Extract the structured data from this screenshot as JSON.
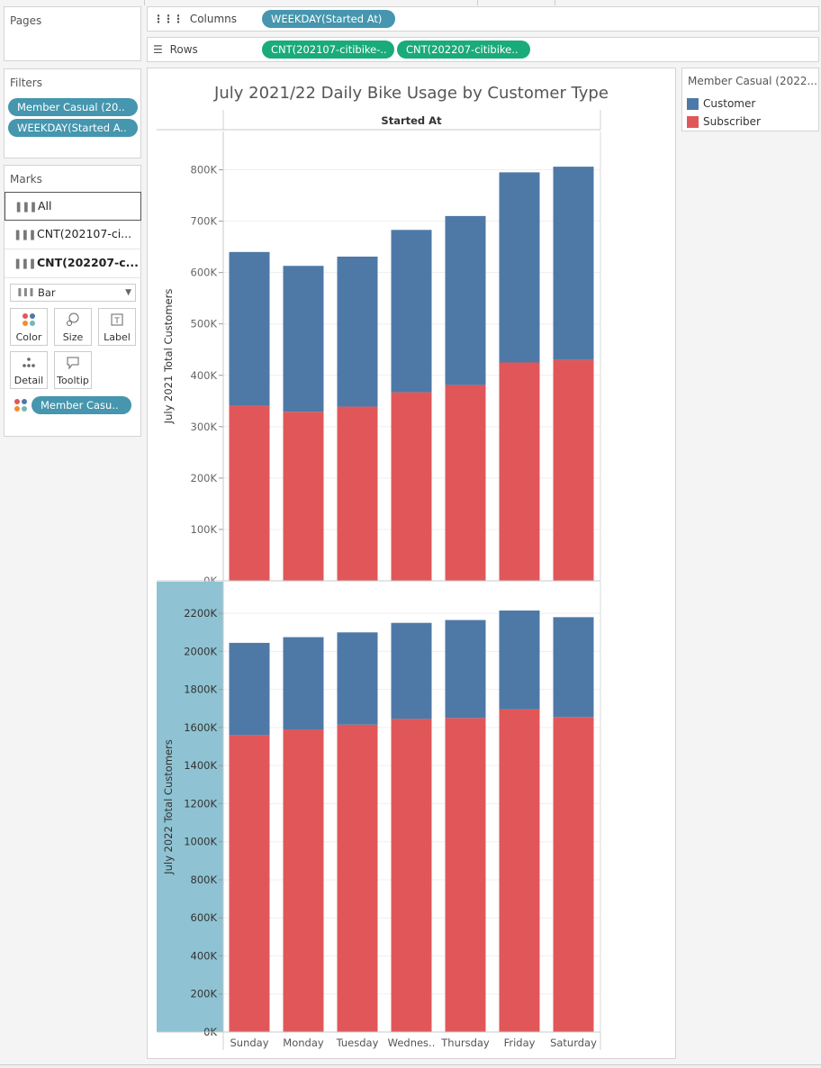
{
  "pages": {
    "title": "Pages"
  },
  "columns_shelf": {
    "label": "Columns",
    "pills": [
      "WEEKDAY(Started At)"
    ]
  },
  "rows_shelf": {
    "label": "Rows",
    "pills": [
      "CNT(202107-citibike-..",
      "CNT(202207-citibike.."
    ]
  },
  "filters": {
    "title": "Filters",
    "pills": [
      "Member Casual (20..",
      "WEEKDAY(Started A.."
    ]
  },
  "marks": {
    "title": "Marks",
    "rows": [
      {
        "label": "All",
        "selected": true,
        "bold": false
      },
      {
        "label": "CNT(202107-ci...",
        "selected": false,
        "bold": false
      },
      {
        "label": "CNT(202207-c...",
        "selected": false,
        "bold": true
      }
    ],
    "mark_type": "Bar",
    "buttons": [
      {
        "label": "Color",
        "icon": "color-dots-icon"
      },
      {
        "label": "Size",
        "icon": "size-icon"
      },
      {
        "label": "Label",
        "icon": "label-icon"
      },
      {
        "label": "Detail",
        "icon": "detail-icon"
      },
      {
        "label": "Tooltip",
        "icon": "tooltip-icon"
      }
    ],
    "color_pill": "Member Casu.."
  },
  "legend": {
    "title": "Member Casual (2022...",
    "items": [
      {
        "label": "Customer",
        "color": "#4e79a7"
      },
      {
        "label": "Subscriber",
        "color": "#e15759"
      }
    ]
  },
  "chart_data": {
    "type": "bar",
    "title": "July 2021/22 Daily Bike Usage by Customer Type",
    "column_header": "Started At",
    "categories": [
      "Sunday",
      "Monday",
      "Tuesday",
      "Wednes..",
      "Thursday",
      "Friday",
      "Saturday"
    ],
    "colors": {
      "Customer": "#4e79a7",
      "Subscriber": "#e15759"
    },
    "panels": [
      {
        "ylabel": "July 2021 Total Customers",
        "ylim": [
          0,
          850000
        ],
        "yticks": [
          0,
          100000,
          200000,
          300000,
          400000,
          500000,
          600000,
          700000,
          800000
        ],
        "ytick_labels": [
          "0K",
          "100K",
          "200K",
          "300K",
          "400K",
          "500K",
          "600K",
          "700K",
          "800K"
        ],
        "series": [
          {
            "name": "Subscriber",
            "values": [
              341000,
              329000,
              339000,
              367000,
              381000,
              425000,
              430000
            ]
          },
          {
            "name": "Customer",
            "values": [
              299000,
              284000,
              292000,
              316000,
              329000,
              370000,
              376000
            ]
          }
        ],
        "totals": [
          640000,
          613000,
          631000,
          683000,
          710000,
          795000,
          806000
        ]
      },
      {
        "ylabel": "July 2022 Total Customers",
        "ylim": [
          0,
          2300000
        ],
        "yticks": [
          0,
          200000,
          400000,
          600000,
          800000,
          1000000,
          1200000,
          1400000,
          1600000,
          1800000,
          2000000,
          2200000
        ],
        "ytick_labels": [
          "0K",
          "200K",
          "400K",
          "600K",
          "800K",
          "1000K",
          "1200K",
          "1400K",
          "1600K",
          "1800K",
          "2000K",
          "2200K"
        ],
        "series": [
          {
            "name": "Subscriber",
            "values": [
              1560000,
              1590000,
              1615000,
              1645000,
              1650000,
              1695000,
              1655000
            ]
          },
          {
            "name": "Customer",
            "values": [
              485000,
              485000,
              485000,
              505000,
              515000,
              520000,
              525000
            ]
          }
        ],
        "totals": [
          2045000,
          2075000,
          2100000,
          2150000,
          2165000,
          2215000,
          2180000
        ]
      }
    ]
  }
}
